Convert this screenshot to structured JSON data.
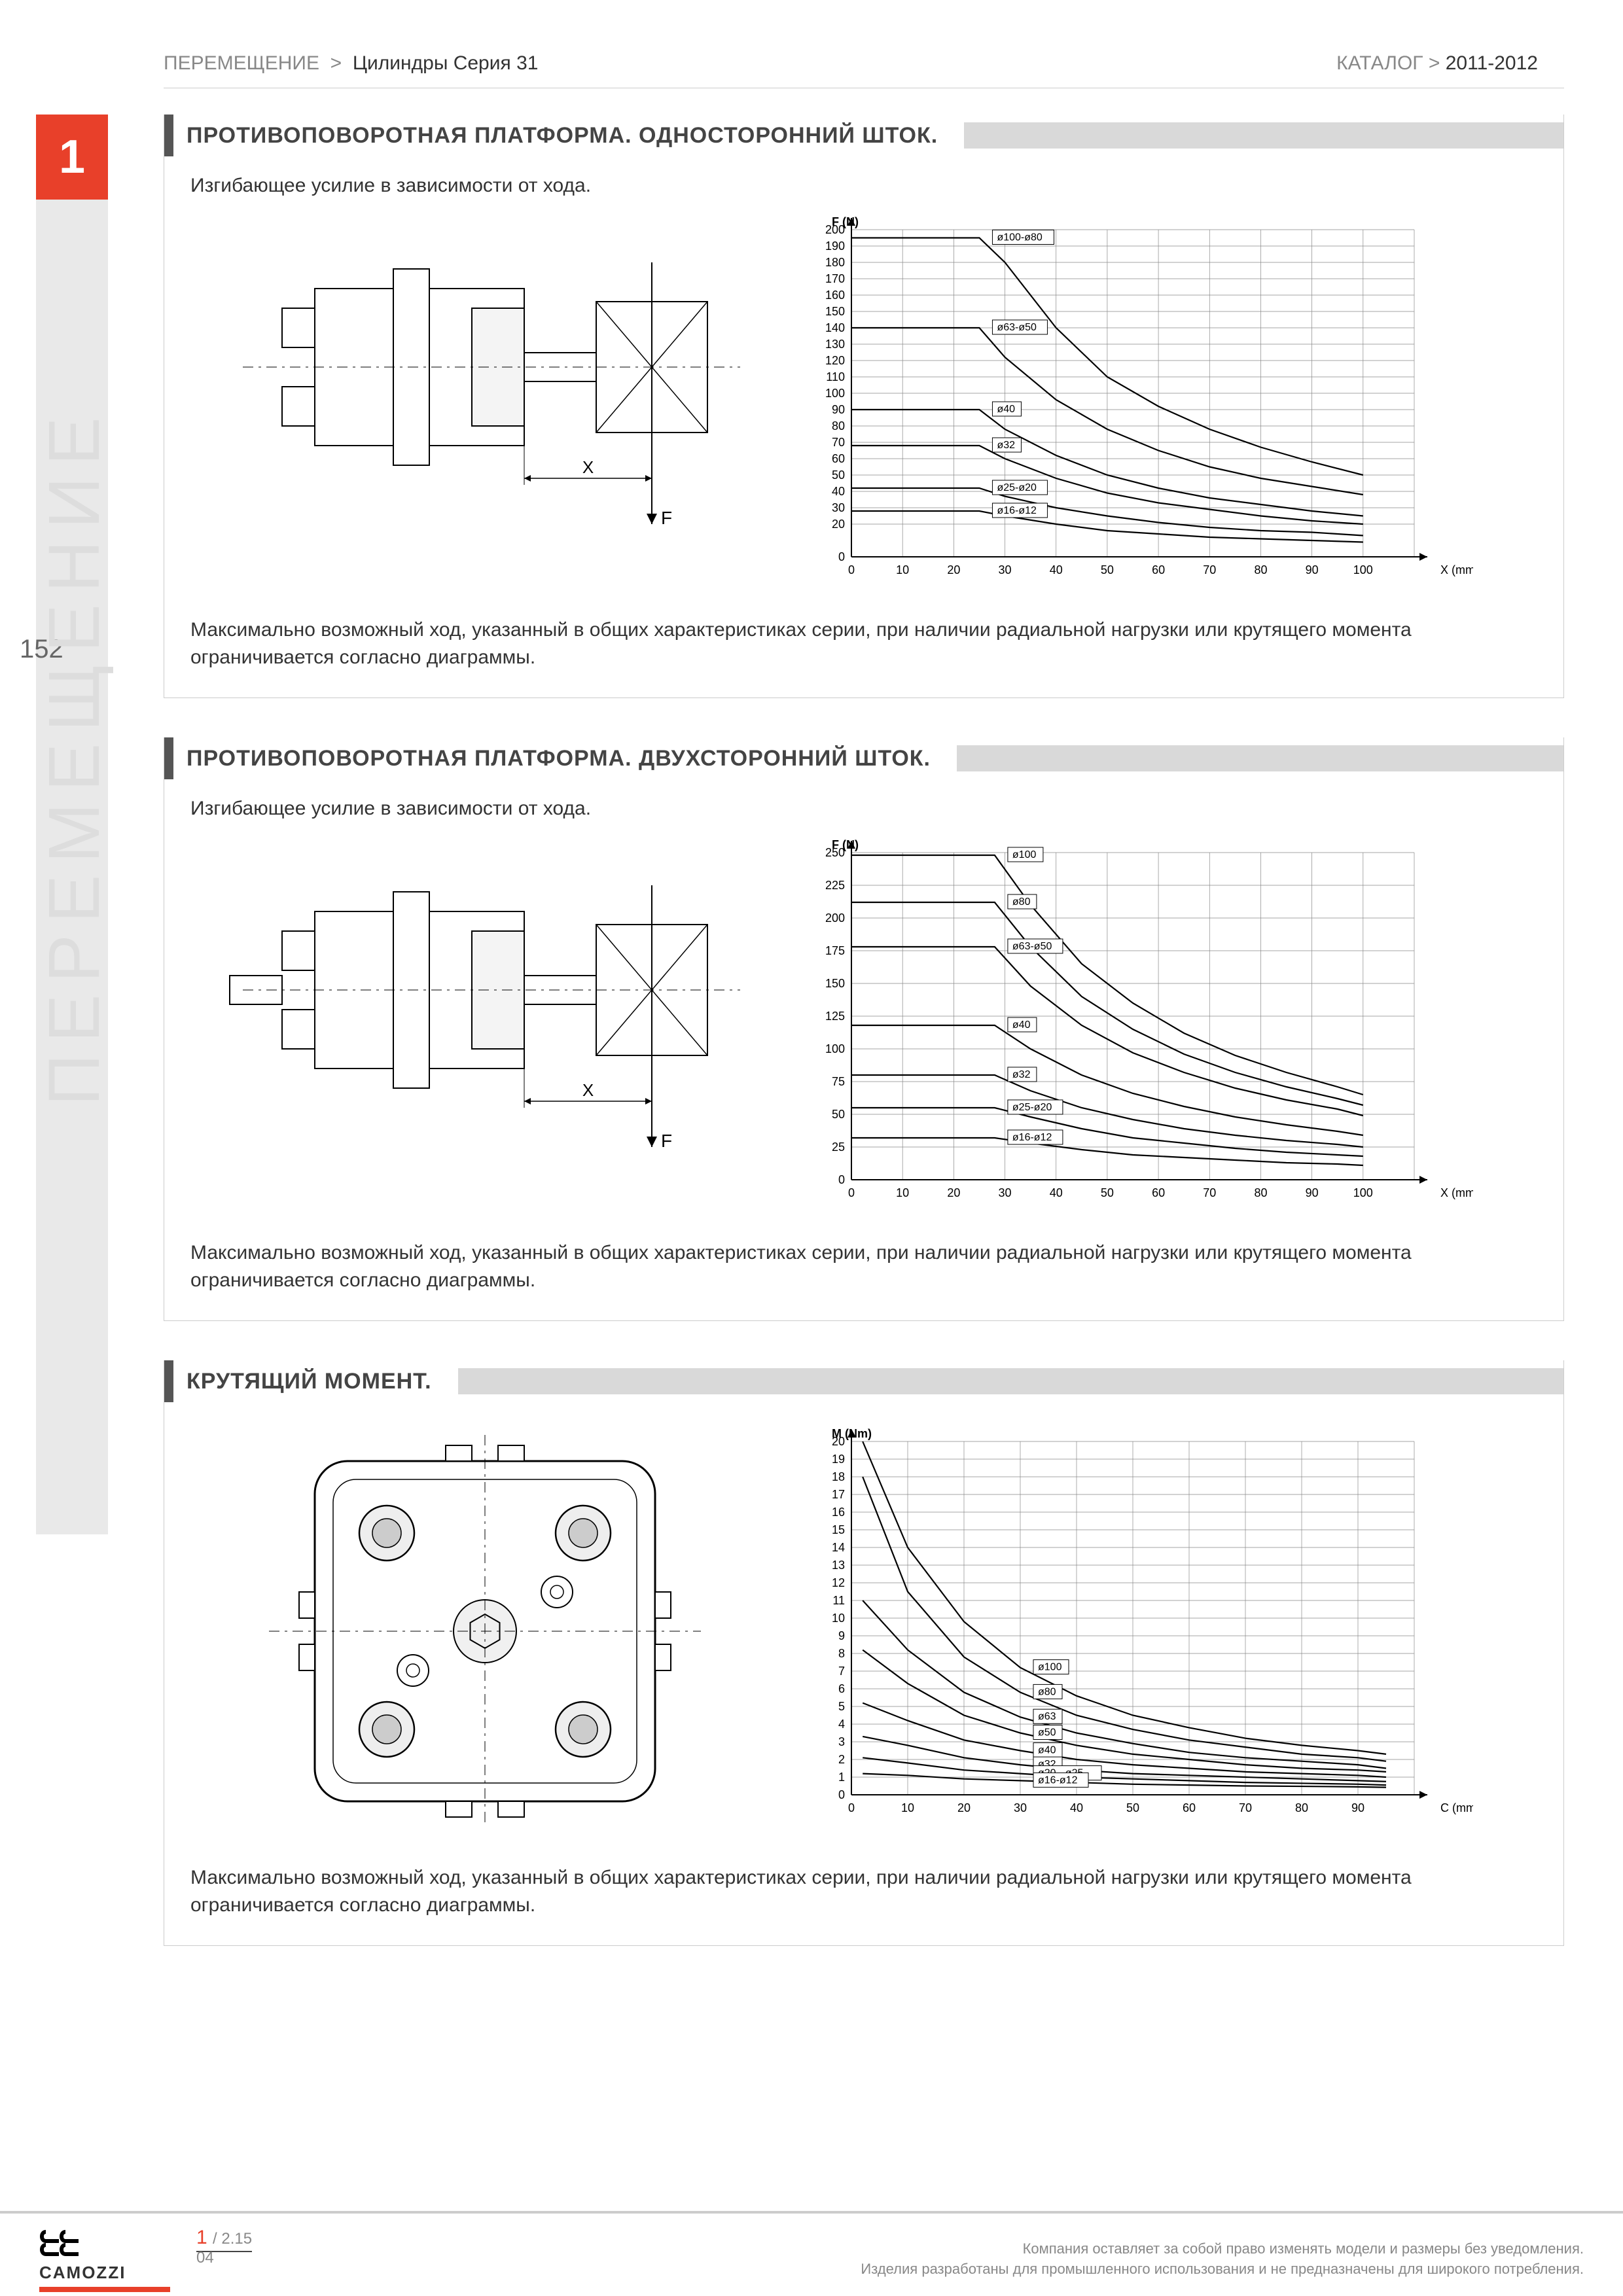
{
  "breadcrumb": {
    "cat": "ПЕРЕМЕЩЕНИЕ",
    "sep": ">",
    "item": "Цилиндры Серия 31",
    "catalog": "КАТАЛОГ",
    "year": "2011-2012"
  },
  "tab": "1",
  "page_number": "152",
  "side_label": "ПЕРЕМЕЩЕНИЕ",
  "sections": [
    {
      "title": "ПРОТИВОПОВОРОТНАЯ ПЛАТФОРМА. ОДНОСТОРОННИЙ ШТОК.",
      "sub": "Изгибающее усилие в зависимости от хода."
    },
    {
      "title": "ПРОТИВОПОВОРОТНАЯ ПЛАТФОРМА. ДВУХСТОРОННИЙ ШТОК.",
      "sub": "Изгибающее усилие в зависимости от хода."
    },
    {
      "title": "КРУТЯЩИЙ МОМЕНТ.",
      "sub": ""
    }
  ],
  "note_text": "Максимально возможный ход, указанный в общих характеристиках серии, при наличии радиальной нагрузки или крутящего момента ограничивается согласно диаграммы.",
  "chart1": {
    "type": "line",
    "xlabel": "X (mm)",
    "ylabel": "F (N)",
    "xlim": [
      0,
      110
    ],
    "ylim": [
      0,
      200
    ],
    "xtick_step": 10,
    "yticks": [
      0,
      20,
      30,
      40,
      50,
      60,
      70,
      80,
      90,
      100,
      110,
      120,
      130,
      140,
      150,
      160,
      170,
      180,
      190,
      200
    ],
    "series": [
      {
        "label": "ø100-ø80",
        "pts": [
          [
            0,
            195
          ],
          [
            10,
            195
          ],
          [
            20,
            195
          ],
          [
            25,
            195
          ],
          [
            30,
            180
          ],
          [
            40,
            140
          ],
          [
            50,
            110
          ],
          [
            60,
            92
          ],
          [
            70,
            78
          ],
          [
            80,
            67
          ],
          [
            90,
            58
          ],
          [
            100,
            50
          ]
        ]
      },
      {
        "label": "ø63-ø50",
        "pts": [
          [
            0,
            140
          ],
          [
            10,
            140
          ],
          [
            20,
            140
          ],
          [
            25,
            140
          ],
          [
            30,
            122
          ],
          [
            40,
            96
          ],
          [
            50,
            78
          ],
          [
            60,
            65
          ],
          [
            70,
            55
          ],
          [
            80,
            48
          ],
          [
            90,
            43
          ],
          [
            100,
            38
          ]
        ]
      },
      {
        "label": "ø40",
        "pts": [
          [
            0,
            90
          ],
          [
            10,
            90
          ],
          [
            20,
            90
          ],
          [
            25,
            90
          ],
          [
            30,
            78
          ],
          [
            40,
            62
          ],
          [
            50,
            50
          ],
          [
            60,
            42
          ],
          [
            70,
            36
          ],
          [
            80,
            32
          ],
          [
            90,
            28
          ],
          [
            100,
            25
          ]
        ]
      },
      {
        "label": "ø32",
        "pts": [
          [
            0,
            68
          ],
          [
            10,
            68
          ],
          [
            20,
            68
          ],
          [
            25,
            68
          ],
          [
            30,
            60
          ],
          [
            40,
            48
          ],
          [
            50,
            39
          ],
          [
            60,
            33
          ],
          [
            70,
            29
          ],
          [
            80,
            25
          ],
          [
            90,
            22
          ],
          [
            100,
            20
          ]
        ]
      },
      {
        "label": "ø25-ø20",
        "pts": [
          [
            0,
            42
          ],
          [
            10,
            42
          ],
          [
            20,
            42
          ],
          [
            25,
            42
          ],
          [
            30,
            37
          ],
          [
            40,
            30
          ],
          [
            50,
            25
          ],
          [
            60,
            21
          ],
          [
            70,
            18
          ],
          [
            80,
            16
          ],
          [
            90,
            15
          ],
          [
            100,
            13
          ]
        ]
      },
      {
        "label": "ø16-ø12",
        "pts": [
          [
            0,
            28
          ],
          [
            10,
            28
          ],
          [
            20,
            28
          ],
          [
            25,
            28
          ],
          [
            30,
            25
          ],
          [
            40,
            20
          ],
          [
            50,
            16
          ],
          [
            60,
            14
          ],
          [
            70,
            12
          ],
          [
            80,
            11
          ],
          [
            90,
            10
          ],
          [
            100,
            9
          ]
        ]
      }
    ],
    "line_color": "#000000",
    "grid_color": "#888888",
    "bg": "#ffffff",
    "font_size": 18
  },
  "chart2": {
    "type": "line",
    "xlabel": "X (mm)",
    "ylabel": "F (N)",
    "xlim": [
      0,
      110
    ],
    "ylim": [
      0,
      250
    ],
    "xtick_step": 10,
    "yticks": [
      0,
      25,
      50,
      75,
      100,
      125,
      150,
      175,
      200,
      225,
      250
    ],
    "series": [
      {
        "label": "ø100",
        "pts": [
          [
            0,
            248
          ],
          [
            10,
            248
          ],
          [
            20,
            248
          ],
          [
            28,
            248
          ],
          [
            35,
            210
          ],
          [
            45,
            165
          ],
          [
            55,
            135
          ],
          [
            65,
            112
          ],
          [
            75,
            95
          ],
          [
            85,
            82
          ],
          [
            95,
            71
          ],
          [
            100,
            65
          ]
        ]
      },
      {
        "label": "ø80",
        "pts": [
          [
            0,
            212
          ],
          [
            10,
            212
          ],
          [
            20,
            212
          ],
          [
            28,
            212
          ],
          [
            35,
            178
          ],
          [
            45,
            140
          ],
          [
            55,
            115
          ],
          [
            65,
            96
          ],
          [
            75,
            82
          ],
          [
            85,
            71
          ],
          [
            95,
            62
          ],
          [
            100,
            57
          ]
        ]
      },
      {
        "label": "ø63-ø50",
        "pts": [
          [
            0,
            178
          ],
          [
            10,
            178
          ],
          [
            20,
            178
          ],
          [
            28,
            178
          ],
          [
            35,
            148
          ],
          [
            45,
            118
          ],
          [
            55,
            97
          ],
          [
            65,
            82
          ],
          [
            75,
            70
          ],
          [
            85,
            61
          ],
          [
            95,
            54
          ],
          [
            100,
            49
          ]
        ]
      },
      {
        "label": "ø40",
        "pts": [
          [
            0,
            118
          ],
          [
            10,
            118
          ],
          [
            20,
            118
          ],
          [
            28,
            118
          ],
          [
            35,
            100
          ],
          [
            45,
            80
          ],
          [
            55,
            66
          ],
          [
            65,
            56
          ],
          [
            75,
            48
          ],
          [
            85,
            42
          ],
          [
            95,
            37
          ],
          [
            100,
            34
          ]
        ]
      },
      {
        "label": "ø32",
        "pts": [
          [
            0,
            80
          ],
          [
            10,
            80
          ],
          [
            20,
            80
          ],
          [
            28,
            80
          ],
          [
            35,
            68
          ],
          [
            45,
            55
          ],
          [
            55,
            46
          ],
          [
            65,
            39
          ],
          [
            75,
            34
          ],
          [
            85,
            30
          ],
          [
            95,
            27
          ],
          [
            100,
            25
          ]
        ]
      },
      {
        "label": "ø25-ø20",
        "pts": [
          [
            0,
            55
          ],
          [
            10,
            55
          ],
          [
            20,
            55
          ],
          [
            28,
            55
          ],
          [
            35,
            48
          ],
          [
            45,
            39
          ],
          [
            55,
            32
          ],
          [
            65,
            28
          ],
          [
            75,
            24
          ],
          [
            85,
            21
          ],
          [
            95,
            19
          ],
          [
            100,
            18
          ]
        ]
      },
      {
        "label": "ø16-ø12",
        "pts": [
          [
            0,
            32
          ],
          [
            10,
            32
          ],
          [
            20,
            32
          ],
          [
            28,
            32
          ],
          [
            35,
            28
          ],
          [
            45,
            23
          ],
          [
            55,
            19
          ],
          [
            65,
            17
          ],
          [
            75,
            15
          ],
          [
            85,
            13
          ],
          [
            95,
            12
          ],
          [
            100,
            11
          ]
        ]
      }
    ],
    "line_color": "#000000",
    "grid_color": "#888888",
    "bg": "#ffffff",
    "font_size": 18
  },
  "chart3": {
    "type": "line",
    "xlabel": "C (mm)",
    "ylabel": "M (Nm)",
    "xlim": [
      0,
      100
    ],
    "ylim": [
      0,
      20
    ],
    "xtick_step": 10,
    "yticks": [
      0,
      1,
      2,
      3,
      4,
      5,
      6,
      7,
      8,
      9,
      10,
      11,
      12,
      13,
      14,
      15,
      16,
      17,
      18,
      19,
      20
    ],
    "series": [
      {
        "label": "ø100",
        "pts": [
          [
            2,
            20
          ],
          [
            10,
            14
          ],
          [
            20,
            9.8
          ],
          [
            30,
            7.2
          ],
          [
            40,
            5.6
          ],
          [
            50,
            4.5
          ],
          [
            60,
            3.8
          ],
          [
            70,
            3.2
          ],
          [
            80,
            2.8
          ],
          [
            90,
            2.5
          ],
          [
            95,
            2.3
          ]
        ]
      },
      {
        "label": "ø80",
        "pts": [
          [
            2,
            18
          ],
          [
            10,
            11.5
          ],
          [
            20,
            7.8
          ],
          [
            30,
            5.8
          ],
          [
            40,
            4.5
          ],
          [
            50,
            3.7
          ],
          [
            60,
            3.1
          ],
          [
            70,
            2.7
          ],
          [
            80,
            2.3
          ],
          [
            90,
            2.1
          ],
          [
            95,
            1.9
          ]
        ]
      },
      {
        "label": "ø63",
        "pts": [
          [
            2,
            11
          ],
          [
            10,
            8.2
          ],
          [
            20,
            5.8
          ],
          [
            30,
            4.4
          ],
          [
            40,
            3.5
          ],
          [
            50,
            2.9
          ],
          [
            60,
            2.4
          ],
          [
            70,
            2.1
          ],
          [
            80,
            1.9
          ],
          [
            90,
            1.7
          ],
          [
            95,
            1.5
          ]
        ]
      },
      {
        "label": "ø50",
        "pts": [
          [
            2,
            8.2
          ],
          [
            10,
            6.3
          ],
          [
            20,
            4.5
          ],
          [
            30,
            3.5
          ],
          [
            40,
            2.8
          ],
          [
            50,
            2.3
          ],
          [
            60,
            2.0
          ],
          [
            70,
            1.7
          ],
          [
            80,
            1.5
          ],
          [
            90,
            1.4
          ],
          [
            95,
            1.3
          ]
        ]
      },
      {
        "label": "ø40",
        "pts": [
          [
            2,
            5.2
          ],
          [
            10,
            4.2
          ],
          [
            20,
            3.1
          ],
          [
            30,
            2.5
          ],
          [
            40,
            2.0
          ],
          [
            50,
            1.7
          ],
          [
            60,
            1.5
          ],
          [
            70,
            1.3
          ],
          [
            80,
            1.2
          ],
          [
            90,
            1.1
          ],
          [
            95,
            1.0
          ]
        ]
      },
      {
        "label": "ø32",
        "pts": [
          [
            2,
            3.3
          ],
          [
            10,
            2.8
          ],
          [
            20,
            2.1
          ],
          [
            30,
            1.7
          ],
          [
            40,
            1.4
          ],
          [
            50,
            1.2
          ],
          [
            60,
            1.1
          ],
          [
            70,
            1.0
          ],
          [
            80,
            0.9
          ],
          [
            90,
            0.8
          ],
          [
            95,
            0.75
          ]
        ]
      },
      {
        "label": "ø20 - ø25",
        "pts": [
          [
            2,
            2.1
          ],
          [
            10,
            1.8
          ],
          [
            20,
            1.4
          ],
          [
            30,
            1.2
          ],
          [
            40,
            1.0
          ],
          [
            50,
            0.9
          ],
          [
            60,
            0.8
          ],
          [
            70,
            0.7
          ],
          [
            80,
            0.65
          ],
          [
            90,
            0.6
          ],
          [
            95,
            0.55
          ]
        ]
      },
      {
        "label": "ø16-ø12",
        "pts": [
          [
            2,
            1.2
          ],
          [
            10,
            1.1
          ],
          [
            20,
            0.9
          ],
          [
            30,
            0.8
          ],
          [
            40,
            0.7
          ],
          [
            50,
            0.6
          ],
          [
            60,
            0.55
          ],
          [
            70,
            0.5
          ],
          [
            80,
            0.48
          ],
          [
            90,
            0.45
          ],
          [
            95,
            0.42
          ]
        ]
      }
    ],
    "line_color": "#000000",
    "grid_color": "#888888",
    "bg": "#ffffff",
    "font_size": 18
  },
  "diagrams": {
    "x_label": "X",
    "f_label": "F"
  },
  "footer": {
    "logo": "CAMOZZI",
    "code_main": "1",
    "code_sub": "/ 2.15",
    "code_bottom": "04",
    "disclaimer1": "Компания оставляет за собой право изменять модели и размеры без уведомления.",
    "disclaimer2": "Изделия разработаны для промышленного использования и не предназначены для широкого потребления."
  },
  "colors": {
    "accent": "#e8402a",
    "grey_bg": "#e9e9e9",
    "header_grey": "#d9d9d9",
    "text": "#333333",
    "side": "#dddddd"
  }
}
